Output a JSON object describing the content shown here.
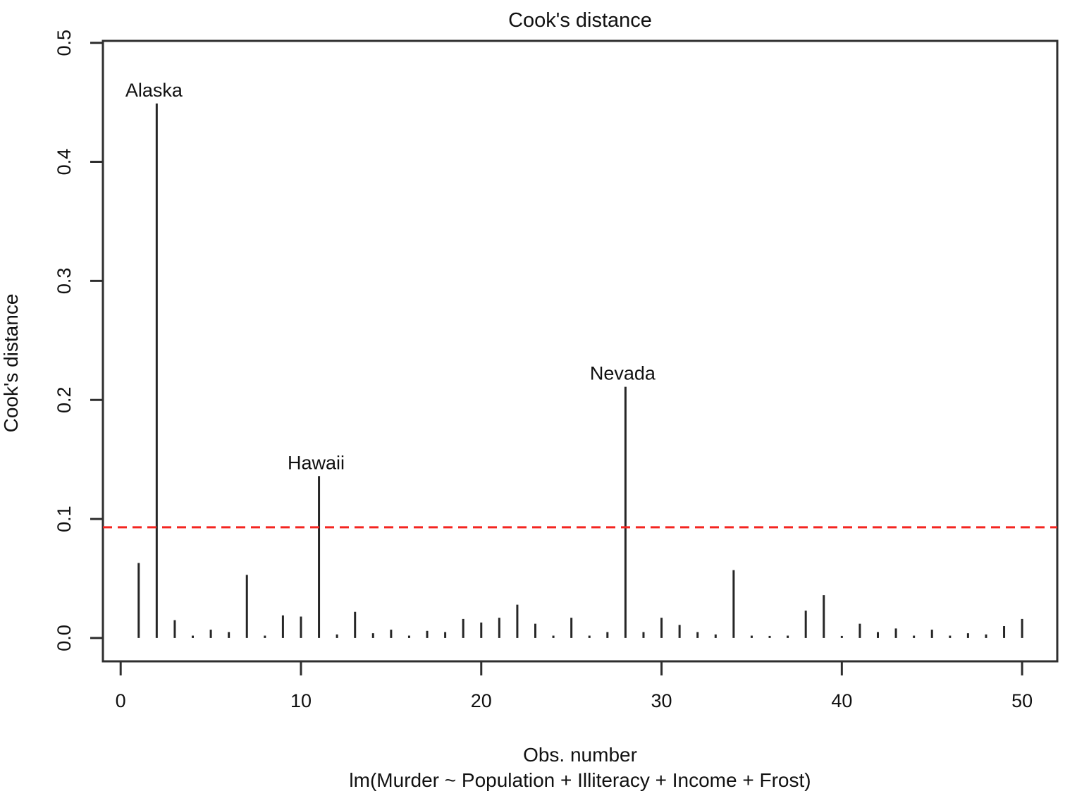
{
  "chart_data": {
    "type": "bar",
    "title": "Cook's distance",
    "ylabel": "Cook's distance",
    "xlabel": "Obs. number",
    "formula": "lm(Murder ~ Population + Illiteracy + Income + Frost)",
    "x_ticks": [
      0,
      10,
      20,
      30,
      40,
      50
    ],
    "y_tick_labels": [
      "0.0",
      "0.1",
      "0.2",
      "0.3",
      "0.4",
      "0.5"
    ],
    "xlim": [
      -0.985,
      51.95
    ],
    "ylim": [
      -0.0196,
      0.5016
    ],
    "grid": false,
    "legend": "none",
    "obs": [
      1,
      2,
      3,
      4,
      5,
      6,
      7,
      8,
      9,
      10,
      11,
      12,
      13,
      14,
      15,
      16,
      17,
      18,
      19,
      20,
      21,
      22,
      23,
      24,
      25,
      26,
      27,
      28,
      29,
      30,
      31,
      32,
      33,
      34,
      35,
      36,
      37,
      38,
      39,
      40,
      41,
      42,
      43,
      44,
      45,
      46,
      47,
      48,
      49,
      50
    ],
    "values": [
      0.063,
      0.449,
      0.015,
      0.002,
      0.007,
      0.005,
      0.053,
      0.002,
      0.019,
      0.018,
      0.136,
      0.003,
      0.022,
      0.004,
      0.007,
      0.002,
      0.006,
      0.005,
      0.016,
      0.013,
      0.017,
      0.028,
      0.012,
      0.002,
      0.017,
      0.002,
      0.005,
      0.211,
      0.005,
      0.017,
      0.011,
      0.005,
      0.003,
      0.057,
      0.002,
      0.001,
      0.002,
      0.023,
      0.036,
      0.001,
      0.012,
      0.005,
      0.008,
      0.002,
      0.007,
      0.002,
      0.004,
      0.003,
      0.01,
      0.016
    ],
    "threshold": {
      "value": 0.093,
      "color": "#f42520",
      "style": "dashed"
    },
    "annotations": [
      {
        "obs": 2,
        "label": "Alaska"
      },
      {
        "obs": 11,
        "label": "Hawaii"
      },
      {
        "obs": 28,
        "label": "Nevada"
      }
    ],
    "colors": {
      "bar": "#262626",
      "axis": "#2e2e2e",
      "text": "#111111"
    }
  }
}
